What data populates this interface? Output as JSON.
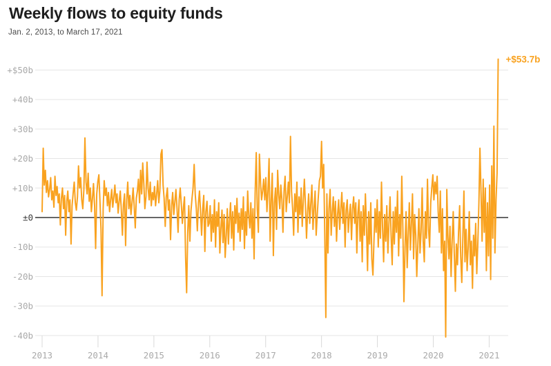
{
  "header": {
    "title": "Weekly flows to equity funds",
    "subtitle": "Jan. 2, 2013, to March 17, 2021"
  },
  "chart_data": {
    "type": "line",
    "title": "Weekly flows to equity funds",
    "subtitle": "Jan. 2, 2013, to March 17, 2021",
    "unit": "billions of dollars per week",
    "grid": "horizontal-only",
    "legend": "none",
    "x_axis": {
      "start": "Jan. 2, 2013",
      "end": "March 17, 2021",
      "interval": "weekly",
      "tick_labels": [
        "2013",
        "2014",
        "2015",
        "2016",
        "2017",
        "2018",
        "2019",
        "2020",
        "2021"
      ]
    },
    "y_axis": {
      "tick_values": [
        50,
        40,
        30,
        20,
        10,
        0,
        -10,
        -20,
        -30,
        -40
      ],
      "tick_labels": [
        "+$50b",
        "+40b",
        "+30b",
        "+20b",
        "+10b",
        "±0",
        "-10b",
        "-20b",
        "-30b",
        "-40b"
      ],
      "range": [
        -45,
        57
      ]
    },
    "annotation": {
      "label": "+$53.7b",
      "value": 53.7
    },
    "colors": {
      "line": "#F9A21F",
      "grid": "#e5e5e5",
      "tick": "#d9d9d9",
      "zero_line": "#333333",
      "axis_label": "#a9a9a9",
      "zero_label": "#3a3a3a",
      "title": "#1e1e1e",
      "subtitle": "#4a4a4a"
    },
    "series": [
      {
        "name": "Weekly flows to equity funds ($b)",
        "values": [
          2,
          23.5,
          11,
          16,
          8.5,
          12.5,
          7,
          9.5,
          13.5,
          6,
          9,
          3.5,
          14,
          7.5,
          10.5,
          5,
          8,
          -2.5,
          6.5,
          10,
          3,
          7.5,
          -6,
          5.5,
          9,
          2,
          6,
          -9,
          4,
          8.5,
          12,
          5,
          2.5,
          7,
          17.5,
          10,
          13.5,
          6,
          3,
          9.5,
          27,
          12,
          8,
          15,
          5.5,
          10,
          2,
          6.5,
          11.5,
          4,
          -10.5,
          8,
          12,
          14.5,
          6,
          -4,
          -26.5,
          3,
          12.5,
          7.5,
          10,
          4,
          8.5,
          2,
          6,
          9.5,
          3.5,
          7,
          11,
          5,
          8,
          1.5,
          5.5,
          9,
          2.5,
          -6,
          4.5,
          8,
          -9.5,
          6,
          12,
          3,
          7.5,
          1,
          5,
          10,
          4,
          -3.5,
          6.5,
          9,
          13,
          5,
          16,
          8,
          18.5,
          11.5,
          3,
          7,
          18.8,
          10,
          6,
          12,
          4,
          8.5,
          6,
          10.5,
          4,
          8,
          12.5,
          5,
          9,
          21.5,
          23,
          11,
          6.5,
          -3,
          7,
          10,
          2.5,
          6,
          -7.5,
          4,
          8.5,
          1,
          5,
          9.5,
          3,
          -5,
          6,
          10,
          4.5,
          -2,
          3.5,
          7,
          -13.5,
          -25.5,
          -5,
          4,
          -8,
          2,
          6.5,
          10,
          18,
          8,
          3,
          -4.5,
          5,
          9,
          1.5,
          -6,
          3,
          7.5,
          -11.5,
          2,
          5.5,
          -3,
          -2,
          4,
          -8,
          1,
          -5,
          6,
          -10,
          2,
          -3,
          5,
          -12,
          -4,
          2.5,
          -8.5,
          1,
          -13.5,
          -6,
          3,
          -9,
          -1,
          5,
          -7,
          2,
          -11,
          4,
          -2,
          6.5,
          -5,
          1.5,
          -8,
          3,
          -4,
          7,
          -10.5,
          2,
          -6,
          9,
          1,
          -3.5,
          5,
          -7,
          3,
          -14,
          8,
          22,
          3,
          -5,
          21.5,
          12,
          6,
          9,
          13,
          6,
          13.5,
          2,
          9,
          20,
          -8,
          6,
          15,
          -12.9,
          5,
          10,
          -4,
          16,
          8,
          3,
          11,
          6,
          -5,
          9,
          14,
          2,
          7,
          12,
          5,
          27.5,
          9,
          3,
          -6,
          8,
          2,
          12,
          -5,
          7,
          1,
          10,
          -3,
          6,
          13,
          4,
          -7,
          2,
          8,
          -2,
          5,
          11,
          -4,
          3,
          9,
          -6,
          1,
          7,
          12.5,
          14,
          25.8,
          10,
          18,
          -5,
          -33.9,
          8,
          -12,
          3,
          9.5,
          -6,
          2,
          7,
          -3,
          5.5,
          -8,
          1,
          6,
          -4,
          3,
          8.5,
          -2,
          5,
          -10,
          2.5,
          6,
          -5,
          1,
          4.5,
          -7.5,
          3,
          7,
          -2,
          5,
          -12,
          1.5,
          6,
          -8,
          2,
          -15,
          4,
          -6,
          8,
          -3,
          -18,
          2,
          -9,
          5,
          -14,
          -19.5,
          -8,
          3,
          -5,
          6,
          -10,
          2,
          -7,
          12,
          -3,
          -15,
          1,
          -8,
          4,
          -12,
          -2,
          7,
          -6,
          -16,
          2,
          -9,
          3.5,
          -5,
          9,
          -13,
          1,
          -7,
          14,
          -4,
          -28.5,
          -10,
          2,
          -17,
          -6,
          5,
          -11,
          -2,
          8,
          -14,
          1,
          -6,
          -20,
          -9,
          3,
          -12,
          -5,
          10,
          -8,
          -15,
          2,
          -7,
          13,
          -4,
          -10,
          5,
          10,
          14.5,
          6,
          12,
          8,
          14,
          2,
          -5,
          9,
          -12,
          3,
          -18,
          -8,
          -40.5,
          9.5,
          -6,
          -14,
          -3,
          -20,
          -8,
          2,
          -12,
          -25,
          -9,
          -16,
          -5,
          4,
          -13,
          -22,
          -7,
          9,
          -15,
          -4,
          -18,
          -10,
          2,
          -16,
          -8,
          -24,
          -6,
          -13,
          -2,
          -19,
          -9,
          5,
          23.5,
          8,
          -8,
          13,
          -5,
          10,
          -18,
          5,
          -13,
          11,
          -21,
          17.5,
          -7,
          31,
          -12,
          6,
          15,
          53.7
        ]
      }
    ]
  }
}
